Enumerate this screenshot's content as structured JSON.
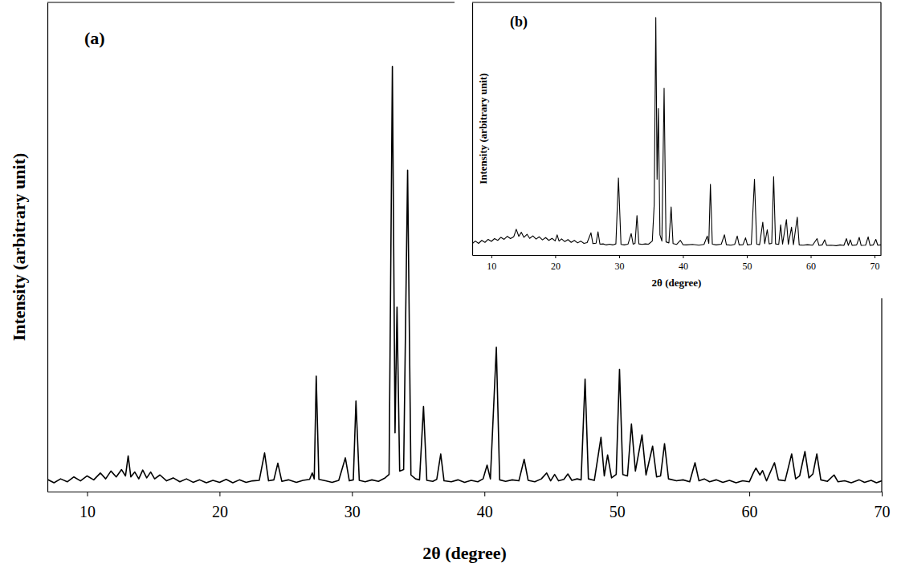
{
  "chart_data": [
    {
      "type": "line",
      "annotations": [
        "(a)"
      ],
      "x_label": "2θ (degree)",
      "y_label": "Intensity (arbitrary unit)",
      "color": "#000000",
      "xlim": [
        7,
        70
      ],
      "xticks": [
        10,
        20,
        30,
        40,
        50,
        60,
        70
      ],
      "ylim": [
        0,
        100
      ],
      "tick_labels": "x",
      "x": [
        7,
        7.5,
        8,
        8.5,
        9,
        9.5,
        10,
        10.5,
        11,
        11.4,
        11.8,
        12.2,
        12.6,
        12.9,
        13.1,
        13.3,
        13.6,
        13.9,
        14.2,
        14.5,
        14.8,
        15.1,
        15.5,
        16,
        16.5,
        17,
        17.5,
        18,
        18.5,
        19,
        19.5,
        20,
        20.5,
        21,
        21.5,
        22,
        22.5,
        23.0,
        23.4,
        23.7,
        24.1,
        24.4,
        24.7,
        25.2,
        25.8,
        26.3,
        26.8,
        27.0,
        27.15,
        27.3,
        27.5,
        28,
        28.5,
        29.0,
        29.5,
        29.8,
        30.1,
        30.3,
        30.55,
        31,
        31.5,
        32,
        32.5,
        32.8,
        33.05,
        33.25,
        33.4,
        33.6,
        33.9,
        34.2,
        34.45,
        34.8,
        35.1,
        35.4,
        35.65,
        36.1,
        36.4,
        36.7,
        36.95,
        37.5,
        38,
        38.5,
        39,
        39.5,
        39.9,
        40.2,
        40.45,
        40.9,
        41.15,
        41.6,
        42.1,
        42.6,
        43.0,
        43.3,
        43.8,
        44.3,
        44.7,
        45.0,
        45.3,
        45.6,
        46.0,
        46.3,
        46.6,
        47.0,
        47.3,
        47.6,
        47.85,
        48.3,
        48.8,
        49.05,
        49.3,
        49.6,
        49.95,
        50.2,
        50.45,
        50.8,
        51.1,
        51.4,
        51.9,
        52.2,
        52.7,
        53.0,
        53.3,
        53.6,
        53.9,
        54.5,
        55.0,
        55.5,
        55.9,
        56.2,
        56.6,
        57.0,
        57.5,
        58,
        58.5,
        59,
        59.5,
        60.0,
        60.3,
        60.5,
        60.8,
        61.0,
        61.3,
        61.9,
        62.2,
        62.7,
        63.2,
        63.5,
        63.8,
        64.2,
        64.5,
        64.8,
        65.1,
        65.4,
        65.9,
        66.4,
        66.7,
        67.2,
        67.7,
        68.3,
        68.7,
        69.2,
        69.6,
        70
      ],
      "values": [
        2.5,
        1.8,
        2.6,
        2.0,
        3.0,
        2.2,
        3.2,
        2.4,
        3.8,
        2.6,
        4.2,
        3.0,
        4.5,
        3.2,
        7.3,
        3.0,
        4.0,
        2.6,
        4.4,
        2.8,
        4.0,
        2.6,
        3.4,
        2.2,
        2.8,
        2.0,
        2.6,
        1.9,
        2.4,
        1.8,
        2.3,
        1.9,
        2.5,
        1.8,
        2.4,
        1.9,
        2.2,
        2.3,
        7.9,
        2.2,
        2.4,
        5.8,
        2.1,
        2.4,
        1.9,
        2.3,
        2.5,
        3.8,
        2.6,
        23.6,
        2.5,
        2.2,
        1.9,
        2.3,
        6.9,
        2.2,
        2.4,
        18.5,
        2.3,
        2.0,
        2.4,
        2.1,
        2.8,
        3.5,
        86.9,
        12,
        37.7,
        4.2,
        4.5,
        65.7,
        3.4,
        2.6,
        2.4,
        17.4,
        2.3,
        2.1,
        2.5,
        7.7,
        2.2,
        2.0,
        2.4,
        1.9,
        2.3,
        2.0,
        2.6,
        5.4,
        2.6,
        29.5,
        2.4,
        2.1,
        2.4,
        2.2,
        6.6,
        2.3,
        2.0,
        2.6,
        3.8,
        2.2,
        3.5,
        2.2,
        2.5,
        3.6,
        2.3,
        2.6,
        2.4,
        23.0,
        2.6,
        2.3,
        11.1,
        3.2,
        7.5,
        2.8,
        3.5,
        25.0,
        3.5,
        3.2,
        13.8,
        4.2,
        11.6,
        3.4,
        9.3,
        3.0,
        3.2,
        9.8,
        2.6,
        2.2,
        2.4,
        2.0,
        5.9,
        2.2,
        2.6,
        2.0,
        2.4,
        1.9,
        2.3,
        1.8,
        2.2,
        2.0,
        3.8,
        4.8,
        3.4,
        4.3,
        2.2,
        5.9,
        2.4,
        2.2,
        7.7,
        2.6,
        3.2,
        8.2,
        2.8,
        3.6,
        7.7,
        2.4,
        2.1,
        3.4,
        2.0,
        2.2,
        1.8,
        2.4,
        1.9,
        2.3,
        1.8,
        2.2
      ]
    },
    {
      "type": "line",
      "annotations": [
        "(b)"
      ],
      "x_label": "2θ (degree)",
      "y_label": "Intensity (arbitrary unit)",
      "color": "#000000",
      "xlim": [
        7,
        71
      ],
      "xticks": [
        10,
        20,
        30,
        40,
        50,
        60,
        70
      ],
      "ylim": [
        0,
        100
      ],
      "tick_labels": "x",
      "x": [
        7,
        7.5,
        8,
        8.5,
        9,
        9.5,
        10,
        10.5,
        11,
        11.5,
        12,
        12.5,
        13,
        13.5,
        13.9,
        14.3,
        14.7,
        15.1,
        15.6,
        16,
        16.5,
        17,
        17.5,
        18,
        18.5,
        19,
        19.5,
        20.0,
        20.3,
        20.6,
        21,
        21.5,
        22,
        22.5,
        23,
        23.5,
        24,
        24.5,
        25.0,
        25.6,
        25.9,
        26.4,
        26.7,
        27.0,
        27.5,
        28,
        28.5,
        29.0,
        29.5,
        29.9,
        30.3,
        30.8,
        31.4,
        31.9,
        32.2,
        32.5,
        32.8,
        33.1,
        33.6,
        34.1,
        34.6,
        35.2,
        35.5,
        35.75,
        35.95,
        36.15,
        36.4,
        36.7,
        37.05,
        37.35,
        37.8,
        38.15,
        38.45,
        39.0,
        39.6,
        40.0,
        40.5,
        41.5,
        42.5,
        43.3,
        43.8,
        44.05,
        44.3,
        44.6,
        45.2,
        46.0,
        46.5,
        46.8,
        47.5,
        48.1,
        48.5,
        48.8,
        49.4,
        49.8,
        50.1,
        50.7,
        51.2,
        51.55,
        52.0,
        52.5,
        52.8,
        53.2,
        53.5,
        53.9,
        54.2,
        54.5,
        55.0,
        55.3,
        55.6,
        56.2,
        56.5,
        57.0,
        57.3,
        57.9,
        58.2,
        58.8,
        59.5,
        60.3,
        61.0,
        61.3,
        61.8,
        62.2,
        62.5,
        63.2,
        64,
        64.6,
        65.2,
        65.6,
        65.9,
        66.2,
        66.5,
        67.2,
        67.6,
        67.9,
        68.6,
        69.0,
        69.3,
        69.8,
        70.2,
        70.5,
        71
      ],
      "values": [
        4.5,
        5.5,
        4.6,
        5.8,
        5.0,
        6.2,
        5.4,
        6.5,
        5.8,
        7.0,
        6.2,
        7.4,
        6.5,
        7.2,
        10.2,
        7.4,
        9.0,
        7.0,
        8.2,
        6.6,
        7.6,
        6.3,
        7.2,
        6.0,
        6.9,
        5.8,
        6.6,
        5.6,
        8.0,
        5.5,
        6.4,
        5.3,
        6.1,
        5.0,
        5.8,
        4.8,
        5.5,
        4.6,
        4.9,
        8.8,
        4.5,
        4.7,
        9.2,
        4.3,
        4.4,
        4.0,
        4.3,
        4.0,
        4.4,
        30.5,
        4.2,
        4.0,
        4.3,
        8.5,
        4.3,
        4.6,
        15.6,
        4.4,
        4.2,
        4.4,
        4.3,
        5.5,
        20,
        94,
        30,
        58,
        8,
        5.5,
        66,
        5.2,
        4.8,
        19,
        4.5,
        4.2,
        5.8,
        4.1,
        4.0,
        4.2,
        3.9,
        4.2,
        7.5,
        4.6,
        28,
        4.3,
        4.0,
        4.3,
        8.0,
        4.1,
        3.9,
        4.2,
        7.5,
        4.0,
        4.1,
        6.8,
        4.0,
        4.2,
        30,
        4.3,
        4.1,
        13,
        4.5,
        10,
        4.4,
        4.6,
        31,
        4.4,
        4.2,
        12,
        4.3,
        14,
        4.2,
        11,
        4.1,
        15,
        4.0,
        3.9,
        4.1,
        3.9,
        6.5,
        3.8,
        4.0,
        6.0,
        3.8,
        3.9,
        3.7,
        4.0,
        3.8,
        6.5,
        3.8,
        6.0,
        3.8,
        4.0,
        7.0,
        3.8,
        3.9,
        7.2,
        3.8,
        4.0,
        6.2,
        3.9,
        4.0
      ]
    }
  ]
}
